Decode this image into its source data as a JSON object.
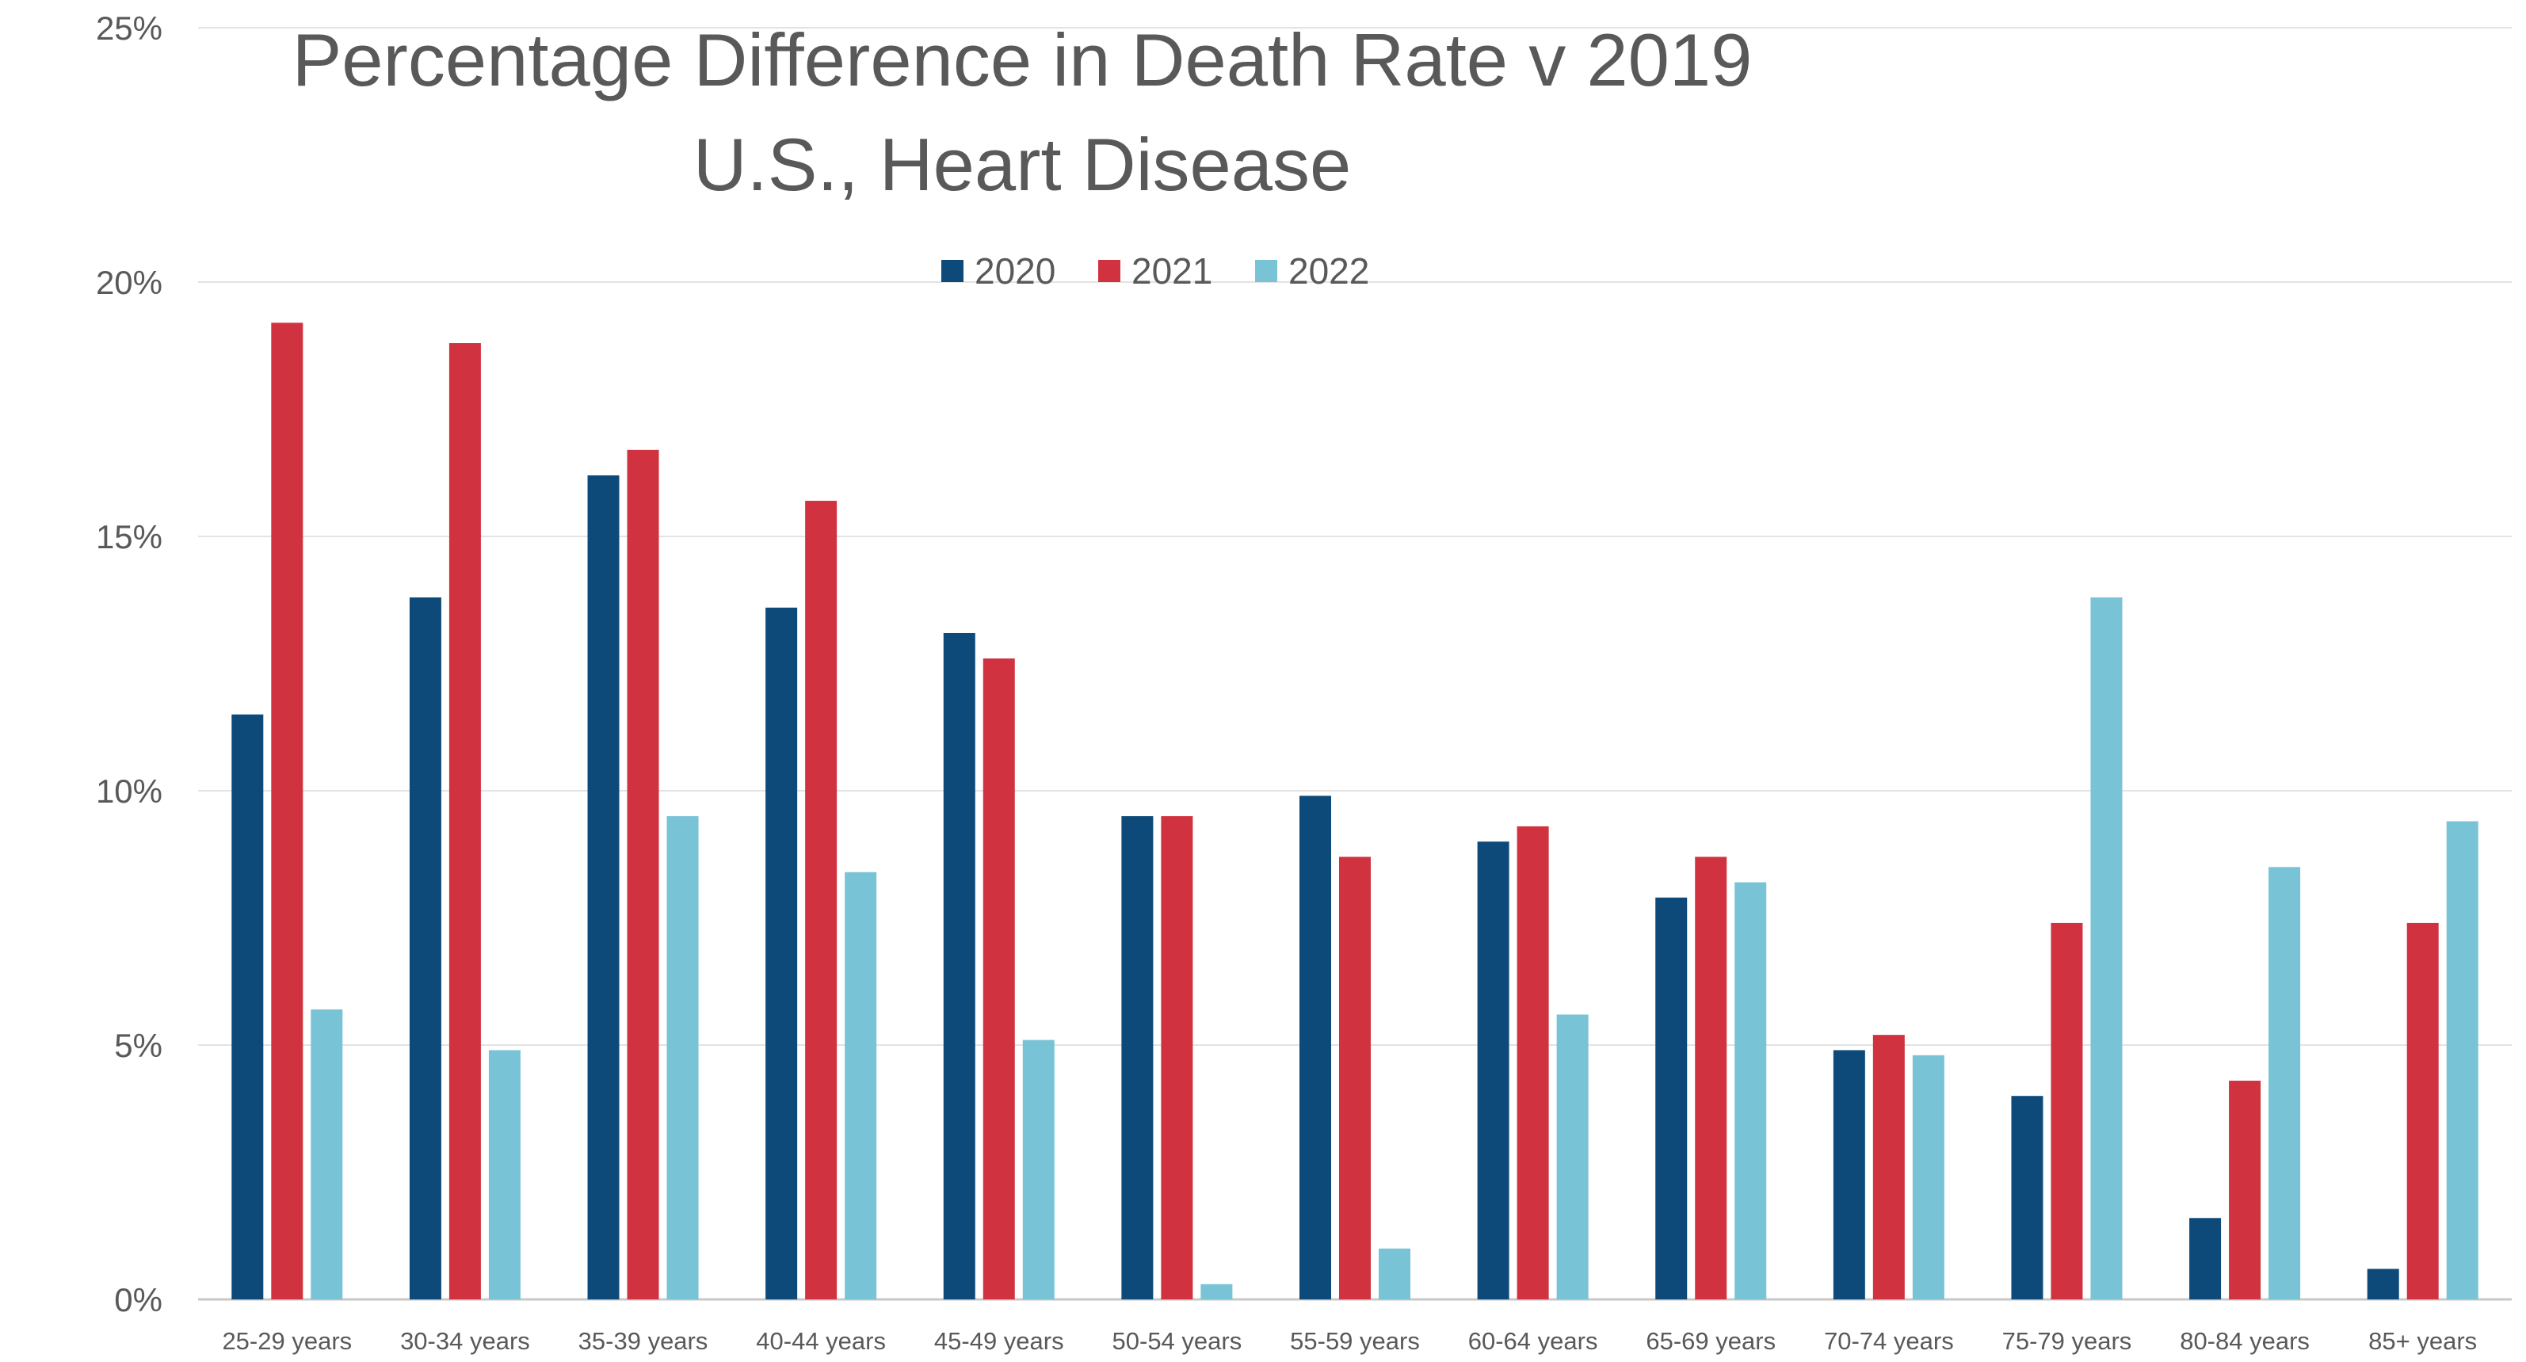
{
  "chart_data": {
    "type": "bar",
    "title": "Percentage Difference in Death Rate v 2019",
    "subtitle": "U.S., Heart Disease",
    "xlabel": "",
    "ylabel": "",
    "ylim": [
      0,
      25
    ],
    "yticks": [
      0,
      5,
      10,
      15,
      20,
      25
    ],
    "ytick_labels": [
      "0%",
      "5%",
      "10%",
      "15%",
      "20%",
      "25%"
    ],
    "grid": true,
    "legend_position": "top-center",
    "categories": [
      "25-29 years",
      "30-34 years",
      "35-39 years",
      "40-44 years",
      "45-49 years",
      "50-54 years",
      "55-59 years",
      "60-64 years",
      "65-69 years",
      "70-74 years",
      "75-79 years",
      "80-84 years",
      "85+ years"
    ],
    "series": [
      {
        "name": "2020",
        "color": "#0d4a79",
        "values": [
          11.5,
          13.8,
          16.2,
          13.6,
          13.1,
          9.5,
          9.9,
          9.0,
          7.9,
          4.9,
          4.0,
          1.6,
          0.6
        ]
      },
      {
        "name": "2021",
        "color": "#d1323f",
        "values": [
          19.2,
          18.8,
          16.7,
          15.7,
          12.6,
          9.5,
          8.7,
          9.3,
          8.7,
          5.2,
          7.4,
          4.3,
          7.4
        ]
      },
      {
        "name": "2022",
        "color": "#79c3d6",
        "values": [
          5.7,
          4.9,
          9.5,
          8.4,
          5.1,
          0.3,
          1.0,
          5.6,
          8.2,
          4.8,
          13.8,
          8.5,
          9.4
        ]
      }
    ]
  }
}
